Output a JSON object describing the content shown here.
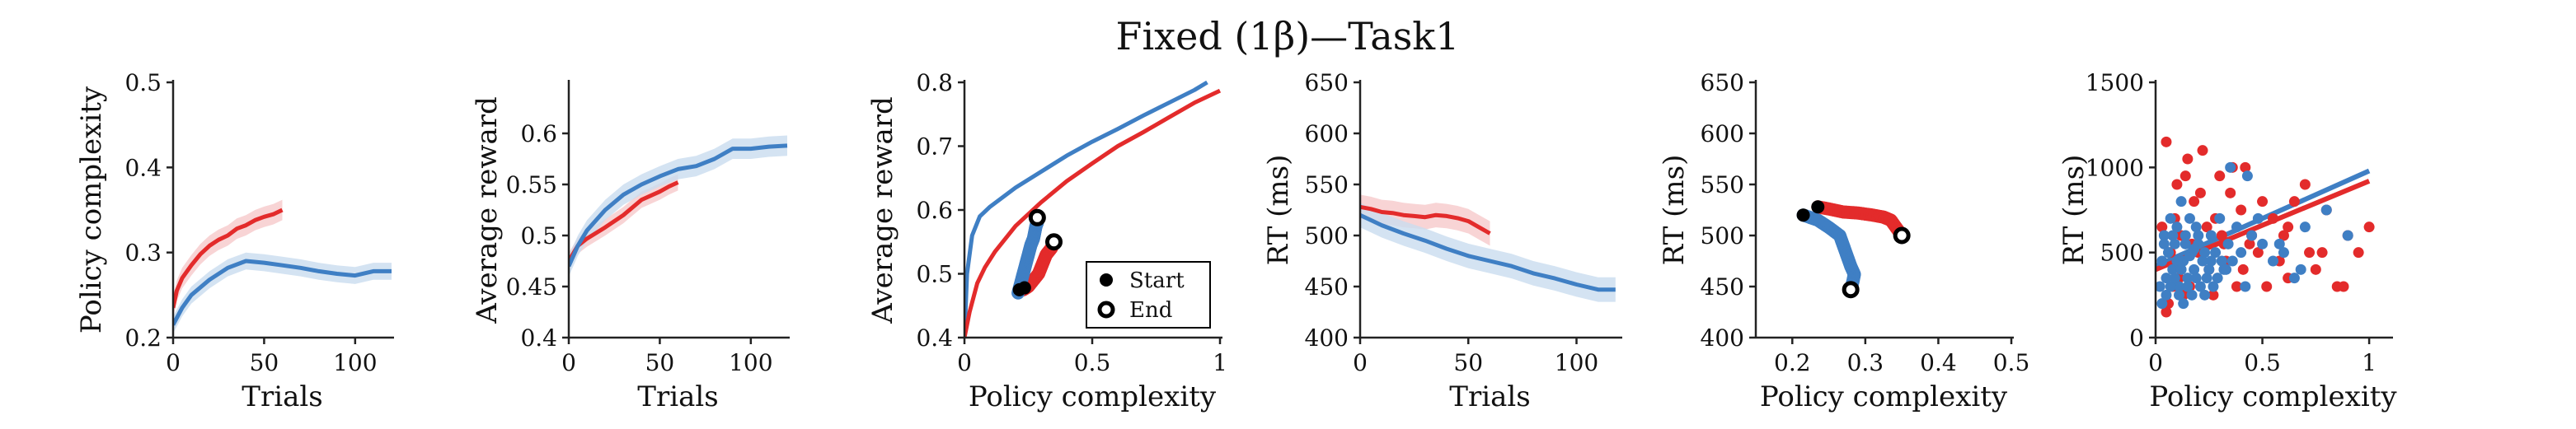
{
  "figure": {
    "title": "Fixed (1β)—Task1"
  },
  "colors": {
    "blue": "#3f7fc4",
    "red": "#e32b2b",
    "blue_band": "#c9dcef",
    "red_band": "#f6c9ca",
    "axis": "#222222"
  },
  "legend": {
    "start_label": "Start",
    "end_label": "End"
  },
  "chart_data": [
    {
      "type": "line",
      "xlabel": "Trials",
      "ylabel": "Policy complexity",
      "xlim": [
        0,
        120
      ],
      "ylim": [
        0.2,
        0.5
      ],
      "xticks": [
        0,
        50,
        100
      ],
      "yticks": [
        0.2,
        0.3,
        0.4,
        0.5
      ],
      "xtick_labels": [
        "0",
        "50",
        "100"
      ],
      "ytick_labels": [
        "0.2",
        "0.3",
        "0.4",
        "0.5"
      ],
      "series": [
        {
          "color": "red",
          "band": 0.012,
          "x": [
            0,
            2,
            5,
            10,
            15,
            20,
            25,
            30,
            35,
            40,
            45,
            50,
            55,
            60
          ],
          "y": [
            0.235,
            0.255,
            0.27,
            0.285,
            0.298,
            0.308,
            0.315,
            0.32,
            0.328,
            0.332,
            0.338,
            0.342,
            0.345,
            0.35
          ]
        },
        {
          "color": "blue",
          "band": 0.01,
          "x": [
            0,
            5,
            10,
            20,
            30,
            40,
            50,
            60,
            70,
            80,
            90,
            100,
            110,
            120
          ],
          "y": [
            0.215,
            0.235,
            0.25,
            0.268,
            0.282,
            0.29,
            0.288,
            0.285,
            0.282,
            0.278,
            0.275,
            0.273,
            0.278,
            0.278
          ]
        }
      ]
    },
    {
      "type": "line",
      "xlabel": "Trials",
      "ylabel": "Average reward",
      "xlim": [
        0,
        120
      ],
      "ylim": [
        0.4,
        0.65
      ],
      "xticks": [
        0,
        50,
        100
      ],
      "yticks": [
        0.4,
        0.45,
        0.5,
        0.55,
        0.6
      ],
      "xtick_labels": [
        "0",
        "50",
        "100"
      ],
      "ytick_labels": [
        "0.4",
        "0.45",
        "0.5",
        "0.55",
        "0.6"
      ],
      "series": [
        {
          "color": "red",
          "band": 0.008,
          "x": [
            0,
            5,
            10,
            20,
            30,
            40,
            50,
            55,
            60
          ],
          "y": [
            0.475,
            0.49,
            0.497,
            0.508,
            0.52,
            0.535,
            0.543,
            0.548,
            0.552
          ]
        },
        {
          "color": "blue",
          "band": 0.01,
          "x": [
            0,
            5,
            10,
            20,
            30,
            40,
            50,
            60,
            70,
            80,
            90,
            100,
            110,
            120
          ],
          "y": [
            0.47,
            0.49,
            0.505,
            0.525,
            0.54,
            0.55,
            0.558,
            0.565,
            0.568,
            0.575,
            0.585,
            0.585,
            0.587,
            0.588
          ]
        }
      ]
    },
    {
      "type": "line",
      "xlabel": "Policy complexity",
      "ylabel": "Average reward",
      "xlim": [
        0,
        1.0
      ],
      "ylim": [
        0.4,
        0.8
      ],
      "xticks": [
        0,
        0.5,
        1
      ],
      "yticks": [
        0.4,
        0.5,
        0.6,
        0.7,
        0.8
      ],
      "xtick_labels": [
        "0",
        "0.5",
        "1"
      ],
      "ytick_labels": [
        "0.4",
        "0.5",
        "0.6",
        "0.7",
        "0.8"
      ],
      "series": [
        {
          "color": "blue",
          "x": [
            0.0,
            0.01,
            0.03,
            0.06,
            0.1,
            0.2,
            0.3,
            0.4,
            0.5,
            0.6,
            0.7,
            0.8,
            0.9,
            0.95
          ],
          "y": [
            0.4,
            0.5,
            0.56,
            0.59,
            0.605,
            0.635,
            0.66,
            0.685,
            0.707,
            0.727,
            0.748,
            0.768,
            0.788,
            0.8
          ]
        },
        {
          "color": "red",
          "x": [
            0.0,
            0.02,
            0.05,
            0.08,
            0.12,
            0.2,
            0.3,
            0.4,
            0.5,
            0.6,
            0.7,
            0.8,
            0.9,
            1.0
          ],
          "y": [
            0.4,
            0.44,
            0.485,
            0.51,
            0.535,
            0.575,
            0.612,
            0.645,
            0.673,
            0.7,
            0.722,
            0.745,
            0.768,
            0.787
          ]
        },
        {
          "color": "red",
          "kind": "scatter-path",
          "x": [
            0.23,
            0.25,
            0.27,
            0.29,
            0.3,
            0.31,
            0.32,
            0.33,
            0.34,
            0.345,
            0.35
          ],
          "y": [
            0.475,
            0.48,
            0.49,
            0.5,
            0.51,
            0.52,
            0.53,
            0.535,
            0.54,
            0.545,
            0.55
          ]
        },
        {
          "color": "blue",
          "kind": "scatter-path",
          "x": [
            0.21,
            0.22,
            0.23,
            0.24,
            0.25,
            0.26,
            0.27,
            0.275,
            0.28,
            0.285,
            0.285
          ],
          "y": [
            0.47,
            0.485,
            0.5,
            0.515,
            0.53,
            0.545,
            0.555,
            0.565,
            0.575,
            0.58,
            0.588
          ]
        }
      ],
      "markers": {
        "start": [
          {
            "x": 0.215,
            "y": 0.475
          },
          {
            "x": 0.235,
            "y": 0.478
          }
        ],
        "end": [
          {
            "x": 0.285,
            "y": 0.588
          },
          {
            "x": 0.35,
            "y": 0.55
          }
        ]
      },
      "legend_position": "lower-right"
    },
    {
      "type": "line",
      "xlabel": "Trials",
      "ylabel": "RT (ms)",
      "xlim": [
        0,
        120
      ],
      "ylim": [
        400,
        650
      ],
      "xticks": [
        0,
        50,
        100
      ],
      "yticks": [
        400,
        450,
        500,
        550,
        600,
        650
      ],
      "xtick_labels": [
        "0",
        "50",
        "100"
      ],
      "ytick_labels": [
        "400",
        "450",
        "500",
        "550",
        "600",
        "650"
      ],
      "series": [
        {
          "color": "red",
          "band": 12,
          "x": [
            0,
            5,
            10,
            15,
            20,
            25,
            30,
            35,
            40,
            45,
            50,
            55,
            60
          ],
          "y": [
            528,
            526,
            523,
            522,
            520,
            519,
            518,
            520,
            519,
            517,
            514,
            508,
            502
          ]
        },
        {
          "color": "blue",
          "band": 12,
          "x": [
            0,
            5,
            10,
            20,
            30,
            40,
            50,
            60,
            70,
            80,
            90,
            100,
            110,
            118
          ],
          "y": [
            520,
            515,
            510,
            502,
            495,
            487,
            480,
            475,
            470,
            463,
            458,
            452,
            447,
            447
          ]
        }
      ]
    },
    {
      "type": "scatter",
      "xlabel": "Policy complexity",
      "ylabel": "RT (ms)",
      "xlim": [
        0.15,
        0.5
      ],
      "ylim": [
        400,
        650
      ],
      "xticks": [
        0.2,
        0.3,
        0.4,
        0.5
      ],
      "yticks": [
        400,
        450,
        500,
        550,
        600,
        650
      ],
      "xtick_labels": [
        "0.2",
        "0.3",
        "0.4",
        "0.5"
      ],
      "ytick_labels": [
        "400",
        "450",
        "500",
        "550",
        "600",
        "650"
      ],
      "series": [
        {
          "color": "red",
          "kind": "scatter-path",
          "x": [
            0.235,
            0.25,
            0.27,
            0.29,
            0.31,
            0.325,
            0.335,
            0.34,
            0.345,
            0.35
          ],
          "y": [
            528,
            526,
            523,
            522,
            520,
            518,
            515,
            510,
            505,
            500
          ]
        },
        {
          "color": "blue",
          "kind": "scatter-path",
          "x": [
            0.215,
            0.235,
            0.25,
            0.265,
            0.27,
            0.275,
            0.28,
            0.285,
            0.283,
            0.28
          ],
          "y": [
            520,
            515,
            508,
            500,
            490,
            480,
            470,
            462,
            455,
            447
          ]
        }
      ],
      "markers": {
        "start": [
          {
            "x": 0.215,
            "y": 520
          },
          {
            "x": 0.235,
            "y": 528
          }
        ],
        "end": [
          {
            "x": 0.35,
            "y": 500
          },
          {
            "x": 0.28,
            "y": 447
          }
        ]
      }
    },
    {
      "type": "scatter",
      "xlabel": "Policy complexity",
      "ylabel": "RT (ms)",
      "xlim": [
        0,
        1.1
      ],
      "ylim": [
        0,
        1500
      ],
      "xticks": [
        0,
        0.5,
        1
      ],
      "yticks": [
        0,
        500,
        1000,
        1500
      ],
      "xtick_labels": [
        "0",
        "0.5",
        "1"
      ],
      "ytick_labels": [
        "0",
        "500",
        "1000",
        "1500"
      ],
      "fit_lines": [
        {
          "color": "blue",
          "x": [
            0,
            1
          ],
          "y": [
            420,
            980
          ]
        },
        {
          "color": "red",
          "x": [
            0,
            1
          ],
          "y": [
            400,
            920
          ]
        }
      ],
      "series": [
        {
          "color": "red",
          "kind": "points",
          "x": [
            0.05,
            0.08,
            0.1,
            0.12,
            0.15,
            0.18,
            0.2,
            0.22,
            0.25,
            0.28,
            0.3,
            0.32,
            0.35,
            0.38,
            0.4,
            0.42,
            0.45,
            0.48,
            0.5,
            0.55,
            0.58,
            0.6,
            0.62,
            0.65,
            0.7,
            0.72,
            0.75,
            0.8,
            0.85,
            0.9,
            0.95,
            1.0,
            0.06,
            0.09,
            0.11,
            0.14,
            0.17,
            0.24,
            0.27,
            0.33,
            0.36,
            0.44,
            0.52,
            0.62,
            0.78,
            0.88,
            0.03,
            0.13,
            0.21,
            0.31,
            0.41,
            0.05,
            0.07,
            0.16
          ],
          "y": [
            1150,
            300,
            900,
            600,
            1050,
            800,
            500,
            1100,
            400,
            700,
            950,
            550,
            850,
            300,
            750,
            1000,
            600,
            500,
            800,
            700,
            450,
            600,
            350,
            800,
            900,
            500,
            400,
            750,
            300,
            600,
            500,
            650,
            200,
            700,
            350,
            950,
            550,
            650,
            250,
            450,
            1000,
            550,
            300,
            650,
            500,
            300,
            650,
            250,
            850,
            600,
            400,
            150,
            500,
            300
          ]
        },
        {
          "color": "blue",
          "kind": "points",
          "x": [
            0.02,
            0.03,
            0.04,
            0.05,
            0.06,
            0.07,
            0.08,
            0.09,
            0.1,
            0.11,
            0.12,
            0.13,
            0.14,
            0.15,
            0.16,
            0.17,
            0.18,
            0.19,
            0.2,
            0.22,
            0.24,
            0.26,
            0.28,
            0.3,
            0.32,
            0.34,
            0.36,
            0.38,
            0.4,
            0.42,
            0.45,
            0.5,
            0.55,
            0.6,
            0.65,
            0.7,
            0.8,
            0.9,
            0.03,
            0.05,
            0.07,
            0.09,
            0.11,
            0.13,
            0.15,
            0.17,
            0.19,
            0.21,
            0.23,
            0.25,
            0.27,
            0.29,
            0.31,
            0.33,
            0.04,
            0.06,
            0.08,
            0.1,
            0.12,
            0.14,
            0.16,
            0.18,
            0.2,
            0.23,
            0.26,
            0.35,
            0.43,
            0.48,
            0.58,
            0.68
          ],
          "y": [
            300,
            450,
            600,
            350,
            500,
            700,
            400,
            550,
            650,
            300,
            800,
            450,
            600,
            350,
            700,
            500,
            400,
            650,
            550,
            450,
            350,
            600,
            500,
            700,
            400,
            550,
            450,
            650,
            500,
            300,
            600,
            550,
            450,
            500,
            350,
            650,
            750,
            600,
            200,
            250,
            300,
            350,
            250,
            200,
            300,
            250,
            350,
            300,
            250,
            400,
            300,
            350,
            450,
            400,
            550,
            500,
            600,
            450,
            400,
            550,
            480,
            520,
            600,
            500,
            450,
            1000,
            950,
            700,
            550,
            400
          ]
        }
      ]
    }
  ]
}
